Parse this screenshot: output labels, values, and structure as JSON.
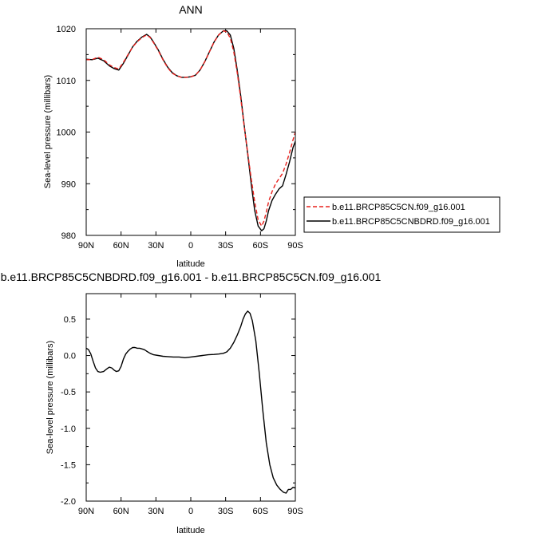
{
  "chart_data": [
    {
      "type": "line",
      "title": "ANN",
      "xlabel": "latitude",
      "ylabel": "Sea-level pressure (millibars)",
      "xlim": [
        90,
        -90
      ],
      "ylim": [
        980,
        1020
      ],
      "xticks": [
        90,
        60,
        30,
        0,
        -30,
        -60,
        -90
      ],
      "xtick_labels": [
        "90N",
        "60N",
        "30N",
        "0",
        "30S",
        "60S",
        "90S"
      ],
      "yticks": [
        980,
        990,
        1000,
        1010,
        1020
      ],
      "ytick_labels": [
        "980",
        "990",
        "1000",
        "1010",
        "1020"
      ],
      "legend_placement": "right",
      "grid": false,
      "series": [
        {
          "name": "b.e11.BRCP85C5CN.f09_g16.001",
          "color": "#e8201c",
          "dash": "dashed",
          "x": [
            90,
            85,
            80,
            75,
            70,
            66,
            62,
            58,
            54,
            50,
            46,
            42,
            38,
            35,
            32,
            28,
            24,
            20,
            16,
            12,
            8,
            4,
            0,
            -4,
            -8,
            -12,
            -16,
            -20,
            -24,
            -28,
            -31,
            -34,
            -37,
            -40,
            -43,
            -46,
            -49,
            -52,
            -55,
            -58,
            -61,
            -63,
            -65,
            -67,
            -70,
            -73,
            -76,
            -79,
            -82,
            -85,
            -88,
            -90
          ],
          "y": [
            1014.0,
            1014.0,
            1014.5,
            1014.0,
            1013.0,
            1012.5,
            1012.2,
            1013.5,
            1015.0,
            1016.5,
            1017.5,
            1018.3,
            1018.8,
            1018.3,
            1017.3,
            1015.8,
            1014.0,
            1012.5,
            1011.4,
            1010.9,
            1010.6,
            1010.6,
            1010.7,
            1011.0,
            1012.0,
            1013.6,
            1015.5,
            1017.4,
            1018.8,
            1019.6,
            1019.4,
            1018.2,
            1015.5,
            1011.5,
            1006.5,
            1001.0,
            996.0,
            991.0,
            986.5,
            983.0,
            981.8,
            982.8,
            984.5,
            986.5,
            988.5,
            990.0,
            991.0,
            992.0,
            993.8,
            996.0,
            998.5,
            1000.0
          ]
        },
        {
          "name": "b.e11.BRCP85C5CNBDRD.f09_g16.001",
          "color": "#000000",
          "dash": "solid",
          "x": [
            90,
            85,
            80,
            75,
            70,
            66,
            62,
            58,
            54,
            50,
            46,
            42,
            38,
            35,
            32,
            28,
            24,
            20,
            16,
            12,
            8,
            4,
            0,
            -4,
            -8,
            -12,
            -16,
            -20,
            -24,
            -28,
            -31,
            -34,
            -37,
            -40,
            -43,
            -46,
            -49,
            -52,
            -55,
            -58,
            -61,
            -63,
            -65,
            -67,
            -70,
            -73,
            -76,
            -79,
            -82,
            -85,
            -88,
            -90
          ],
          "y": [
            1014.1,
            1014.0,
            1014.3,
            1013.8,
            1012.8,
            1012.3,
            1012.0,
            1013.3,
            1014.9,
            1016.5,
            1017.6,
            1018.4,
            1018.9,
            1018.4,
            1017.4,
            1015.9,
            1014.1,
            1012.6,
            1011.5,
            1010.9,
            1010.6,
            1010.6,
            1010.7,
            1011.0,
            1012.0,
            1013.6,
            1015.5,
            1017.4,
            1018.8,
            1019.6,
            1019.6,
            1018.8,
            1016.2,
            1012.0,
            1007.0,
            1001.2,
            995.8,
            990.0,
            984.8,
            981.8,
            980.9,
            981.3,
            982.8,
            984.8,
            986.8,
            988.0,
            989.0,
            989.6,
            991.8,
            994.2,
            997.0,
            998.2
          ]
        }
      ]
    },
    {
      "type": "line",
      "title": "b.e11.BRCP85C5CNBDRD.f09_g16.001 - b.e11.BRCP85C5CN.f09_g16.001",
      "xlabel": "latitude",
      "ylabel": "Sea-level pressure (millibars)",
      "xlim": [
        90,
        -90
      ],
      "ylim": [
        -2.0,
        0.85
      ],
      "xticks": [
        90,
        60,
        30,
        0,
        -30,
        -60,
        -90
      ],
      "xtick_labels": [
        "90N",
        "60N",
        "30N",
        "0",
        "30S",
        "60S",
        "90S"
      ],
      "yticks": [
        -2.0,
        -1.5,
        -1.0,
        -0.5,
        0.0,
        0.5
      ],
      "ytick_labels": [
        "-2.0",
        "-1.5",
        "-1.0",
        "-0.5",
        "0.0",
        "0.5"
      ],
      "grid": false,
      "series": [
        {
          "color": "#000000",
          "dash": "solid",
          "x": [
            90,
            88,
            86,
            84,
            82,
            80,
            78,
            75,
            72,
            70,
            68,
            66,
            64,
            62,
            60,
            58,
            56,
            54,
            52,
            50,
            48,
            46,
            44,
            42,
            40,
            38,
            35,
            32,
            28,
            24,
            20,
            15,
            10,
            5,
            0,
            -5,
            -10,
            -15,
            -20,
            -24,
            -28,
            -31,
            -34,
            -37,
            -40,
            -43,
            -45,
            -47,
            -49,
            -51,
            -53,
            -56,
            -59,
            -62,
            -65,
            -68,
            -71,
            -74,
            -77,
            -80,
            -82,
            -84,
            -86,
            -88,
            -90
          ],
          "y": [
            0.1,
            0.08,
            0.02,
            -0.08,
            -0.17,
            -0.22,
            -0.23,
            -0.22,
            -0.18,
            -0.16,
            -0.17,
            -0.2,
            -0.22,
            -0.21,
            -0.15,
            -0.05,
            0.02,
            0.06,
            0.09,
            0.11,
            0.11,
            0.1,
            0.1,
            0.09,
            0.08,
            0.06,
            0.03,
            0.01,
            0.0,
            -0.01,
            -0.015,
            -0.02,
            -0.02,
            -0.03,
            -0.02,
            -0.01,
            0.0,
            0.01,
            0.015,
            0.02,
            0.03,
            0.05,
            0.1,
            0.18,
            0.28,
            0.4,
            0.5,
            0.57,
            0.61,
            0.58,
            0.48,
            0.2,
            -0.25,
            -0.75,
            -1.2,
            -1.5,
            -1.68,
            -1.78,
            -1.84,
            -1.88,
            -1.89,
            -1.84,
            -1.84,
            -1.81,
            -1.82
          ]
        }
      ]
    }
  ]
}
